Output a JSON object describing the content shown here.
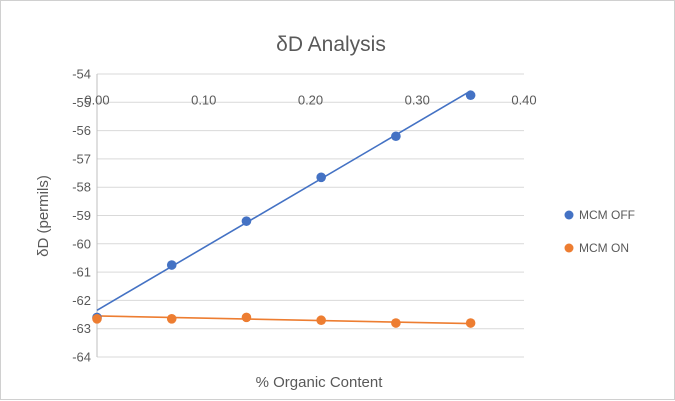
{
  "chart_data": {
    "type": "scatter",
    "title": "δD Analysis",
    "xlabel": "% Organic Content",
    "ylabel": "δD (permils)",
    "xlim": [
      0,
      0.4
    ],
    "ylim": [
      -64,
      -54
    ],
    "x_ticks": [
      "0.00",
      "0.10",
      "0.20",
      "0.30",
      "0.40"
    ],
    "y_ticks": [
      "-54",
      "-55",
      "-56",
      "-57",
      "-58",
      "-59",
      "-60",
      "-61",
      "-62",
      "-63",
      "-64"
    ],
    "grid": true,
    "legend_position": "right",
    "series": [
      {
        "name": "MCM OFF",
        "color": "#4472c4",
        "x": [
          0.0,
          0.07,
          0.14,
          0.21,
          0.28,
          0.35
        ],
        "y": [
          -62.6,
          -60.75,
          -59.2,
          -57.65,
          -56.2,
          -54.75
        ],
        "trendline": {
          "x": [
            0.0,
            0.35
          ],
          "y": [
            -62.35,
            -54.6
          ]
        }
      },
      {
        "name": "MCM ON",
        "color": "#ed7d31",
        "x": [
          0.0,
          0.07,
          0.14,
          0.21,
          0.28,
          0.35
        ],
        "y": [
          -62.65,
          -62.65,
          -62.6,
          -62.7,
          -62.8,
          -62.8
        ],
        "trendline": {
          "x": [
            0.0,
            0.35
          ],
          "y": [
            -62.55,
            -62.82
          ]
        }
      }
    ]
  }
}
